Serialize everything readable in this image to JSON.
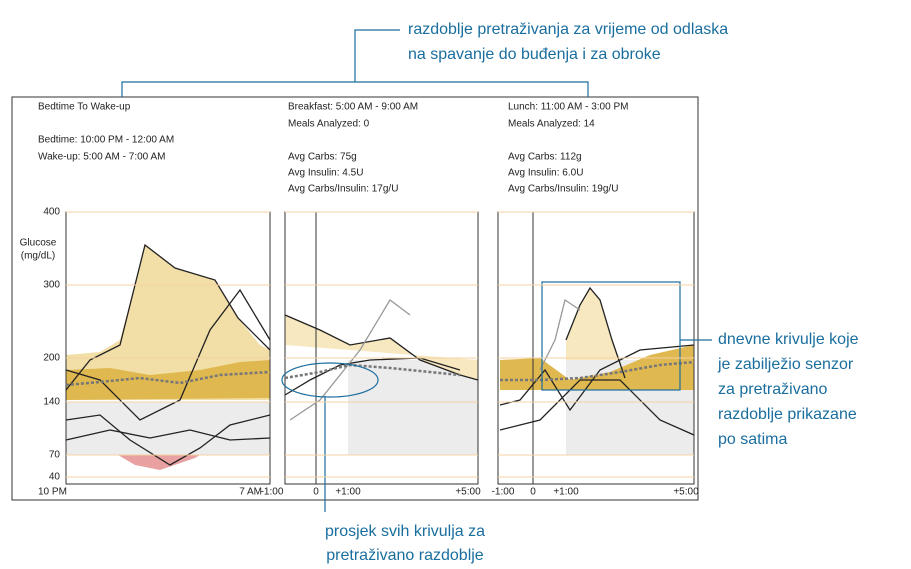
{
  "annotations": {
    "top": [
      "razdoblje pretraživanja za vrijeme od odlaska",
      "na spavanje do buđenja i za obroke"
    ],
    "right": [
      "dnevne krivulje koje",
      "je zabilježio senzor",
      "za pretraživano",
      "razdoblje prikazane",
      "po satima"
    ],
    "bottom": [
      "prosjek svih krivulja za",
      "pretraživano razdoblje"
    ]
  },
  "panels": [
    {
      "header": [
        "Bedtime To Wake-up",
        "Bedtime: 10:00 PM - 12:00 AM",
        "Wake-up: 5:00 AM - 7:00 AM"
      ],
      "x_labels": [
        "10 PM",
        "7 AM"
      ]
    },
    {
      "header": [
        "Breakfast: 5:00 AM - 9:00 AM",
        "Meals Analyzed: 0",
        "Avg Carbs: 75g",
        "Avg Insulin: 4.5U",
        "Avg Carbs/Insulin: 17g/U"
      ],
      "x_labels": [
        "-1:00",
        "0",
        "+1:00",
        "+5:00"
      ]
    },
    {
      "header": [
        "Lunch: 11:00 AM - 3:00 PM",
        "Meals Analyzed: 14",
        "Avg Carbs: 112g",
        "Avg Insulin: 6.0U",
        "Avg Carbs/Insulin: 19g/U"
      ],
      "x_labels": [
        "-1:00",
        "0",
        "+1:00",
        "+5:00"
      ]
    }
  ],
  "y_axis": {
    "label": [
      "Glucose",
      "(mg/dL)"
    ],
    "ticks": [
      "400",
      "300",
      "200",
      "140",
      "70",
      "40"
    ]
  }
}
